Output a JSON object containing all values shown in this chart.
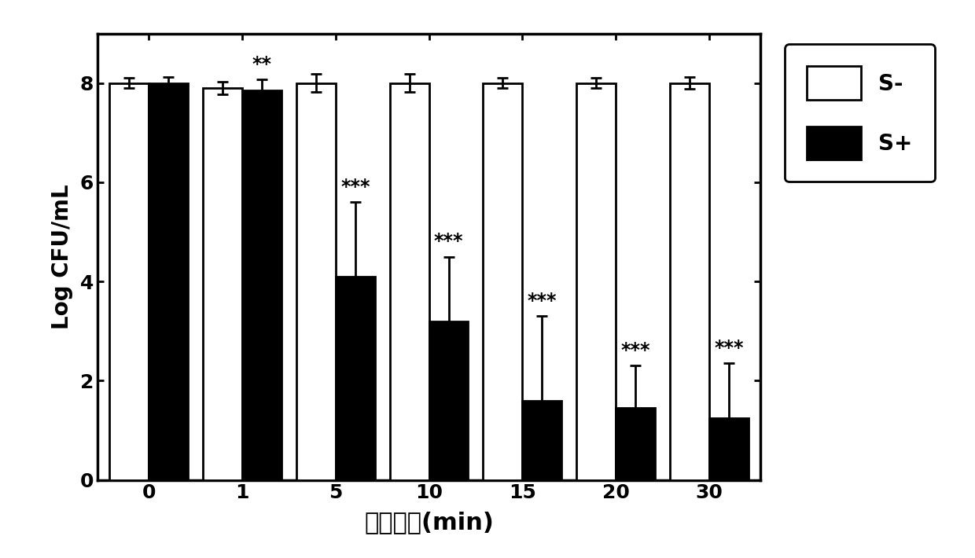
{
  "categories": [
    "0",
    "1",
    "5",
    "10",
    "15",
    "20",
    "30"
  ],
  "s_minus_values": [
    8.0,
    7.9,
    8.0,
    8.0,
    8.0,
    8.0,
    8.0
  ],
  "s_minus_errors": [
    0.1,
    0.12,
    0.18,
    0.18,
    0.1,
    0.1,
    0.12
  ],
  "s_plus_values": [
    8.0,
    7.85,
    4.1,
    3.2,
    1.6,
    1.45,
    1.25
  ],
  "s_plus_errors": [
    0.12,
    0.22,
    1.5,
    1.3,
    1.7,
    0.85,
    1.1
  ],
  "significance": [
    "",
    "**",
    "***",
    "***",
    "***",
    "***",
    "***"
  ],
  "ylabel": "Log CFU/mL",
  "xlabel_cn": "照射时间",
  "xlabel_en": "(min)",
  "ylim": [
    0,
    9
  ],
  "yticks": [
    0,
    2,
    4,
    6,
    8
  ],
  "legend_labels": [
    "S-",
    "S+"
  ],
  "bar_width": 0.42,
  "s_minus_color": "#ffffff",
  "s_plus_color": "#000000",
  "edge_color": "#000000",
  "background_color": "#ffffff",
  "sig_fontsize": 17,
  "axis_label_fontsize": 20,
  "tick_fontsize": 18,
  "legend_fontsize": 20
}
